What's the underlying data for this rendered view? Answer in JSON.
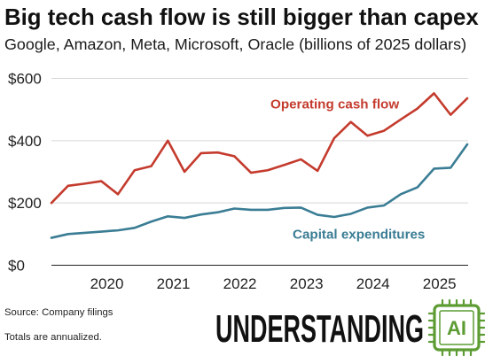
{
  "chart_data": {
    "type": "line",
    "title": "Big tech cash flow is still bigger than capex",
    "subtitle": "Google, Amazon, Meta, Microsoft, Oracle (billions of 2025 dollars)",
    "x": [
      "2019-03",
      "2019-06",
      "2019-09",
      "2019-12",
      "2020-03",
      "2020-06",
      "2020-09",
      "2020-12",
      "2021-03",
      "2021-06",
      "2021-09",
      "2021-12",
      "2022-03",
      "2022-06",
      "2022-09",
      "2022-12",
      "2023-03",
      "2023-06",
      "2023-09",
      "2023-12",
      "2024-03",
      "2024-06",
      "2024-09",
      "2024-12",
      "2025-03",
      "2025-06"
    ],
    "x_ticks": [
      "2020",
      "2021",
      "2022",
      "2023",
      "2024",
      "2025"
    ],
    "y_ticks": [
      0,
      200,
      400,
      600
    ],
    "y_tick_labels": [
      "$0",
      "$200",
      "$400",
      "$600"
    ],
    "ylim": [
      0,
      600
    ],
    "grid": true,
    "series": [
      {
        "name": "Operating cash flow",
        "color": "#c43b2d",
        "values": [
          200,
          255,
          262,
          270,
          228,
          305,
          318,
          400,
          300,
          360,
          362,
          350,
          297,
          305,
          322,
          340,
          303,
          408,
          460,
          416,
          432,
          468,
          503,
          552,
          483,
          536
        ]
      },
      {
        "name": "Capital expenditures",
        "color": "#3a7d94",
        "values": [
          88,
          100,
          104,
          108,
          112,
          120,
          140,
          157,
          152,
          163,
          170,
          182,
          178,
          178,
          184,
          185,
          162,
          155,
          165,
          185,
          192,
          228,
          250,
          310,
          313,
          388
        ]
      }
    ]
  },
  "notes": {
    "source": "Source: Company filings",
    "annualized": "Totals are annualized."
  },
  "logo": {
    "text": "UNDERSTANDING",
    "badge": "AI",
    "color": "#5c9c33"
  }
}
